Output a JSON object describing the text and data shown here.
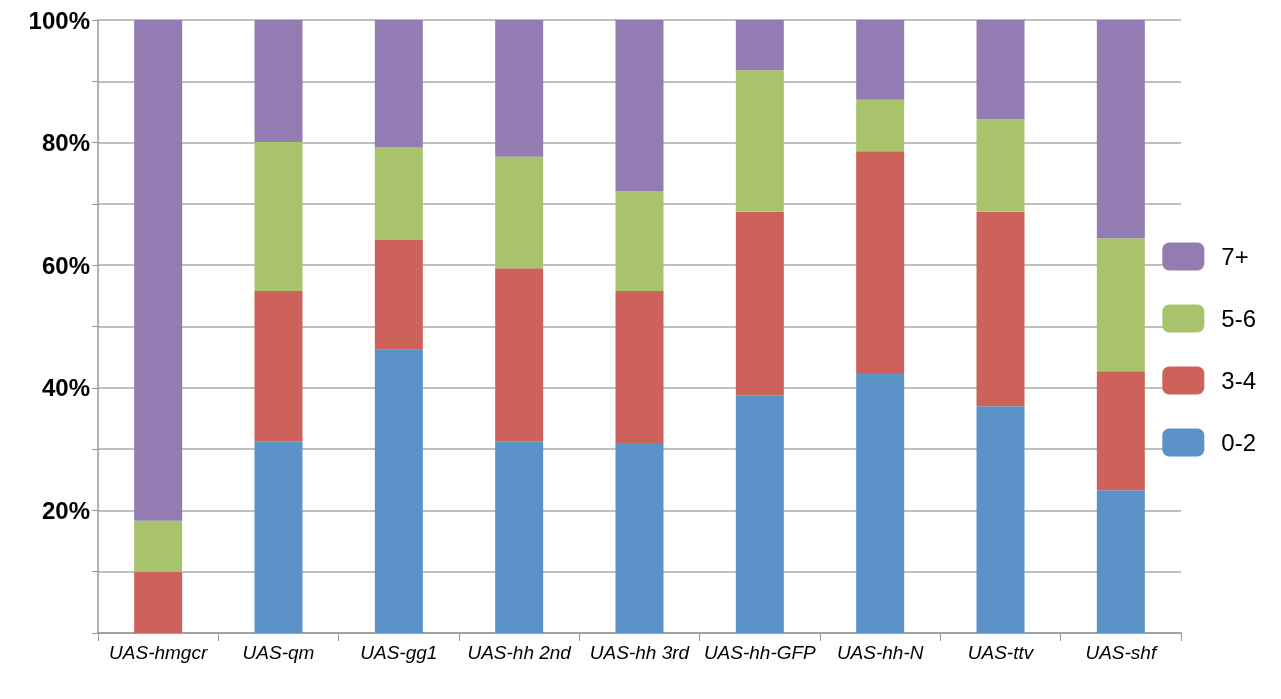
{
  "chart_data": {
    "type": "bar",
    "stacked": true,
    "categories": [
      "UAS-hmgcr",
      "UAS-qm",
      "UAS-gg1",
      "UAS-hh 2nd",
      "UAS-hh 3rd",
      "UAS-hh-GFP",
      "UAS-hh-N",
      "UAS-ttv",
      "UAS-shf"
    ],
    "series": [
      {
        "name": "0-2",
        "color": "#5b93c8",
        "values": [
          0,
          31.3,
          46.2,
          31.3,
          31.0,
          38.8,
          42.4,
          37.0,
          23.3
        ]
      },
      {
        "name": "3-4",
        "color": "#cd625a",
        "values": [
          10.0,
          24.5,
          17.9,
          28.2,
          24.8,
          29.9,
          36.2,
          31.7,
          19.4
        ]
      },
      {
        "name": "5-6",
        "color": "#a9c36c",
        "values": [
          8.3,
          24.3,
          15.2,
          18.2,
          16.3,
          23.1,
          8.4,
          15.1,
          21.7
        ]
      },
      {
        "name": "7+",
        "color": "#937cb1",
        "values": [
          81.7,
          19.9,
          20.7,
          22.3,
          27.9,
          8.2,
          13.0,
          16.2,
          35.6
        ]
      }
    ],
    "ylim": [
      0,
      100
    ],
    "yticks": [
      {
        "value": 0,
        "label": null
      },
      {
        "value": 10,
        "label": null
      },
      {
        "value": 20,
        "label": "20%"
      },
      {
        "value": 30,
        "label": null
      },
      {
        "value": 40,
        "label": "40%"
      },
      {
        "value": 50,
        "label": null
      },
      {
        "value": 60,
        "label": "60%"
      },
      {
        "value": 70,
        "label": null
      },
      {
        "value": 80,
        "label": "80%"
      },
      {
        "value": 90,
        "label": null
      },
      {
        "value": 100,
        "label": "100%"
      }
    ],
    "grid": "y",
    "legend": "right"
  }
}
